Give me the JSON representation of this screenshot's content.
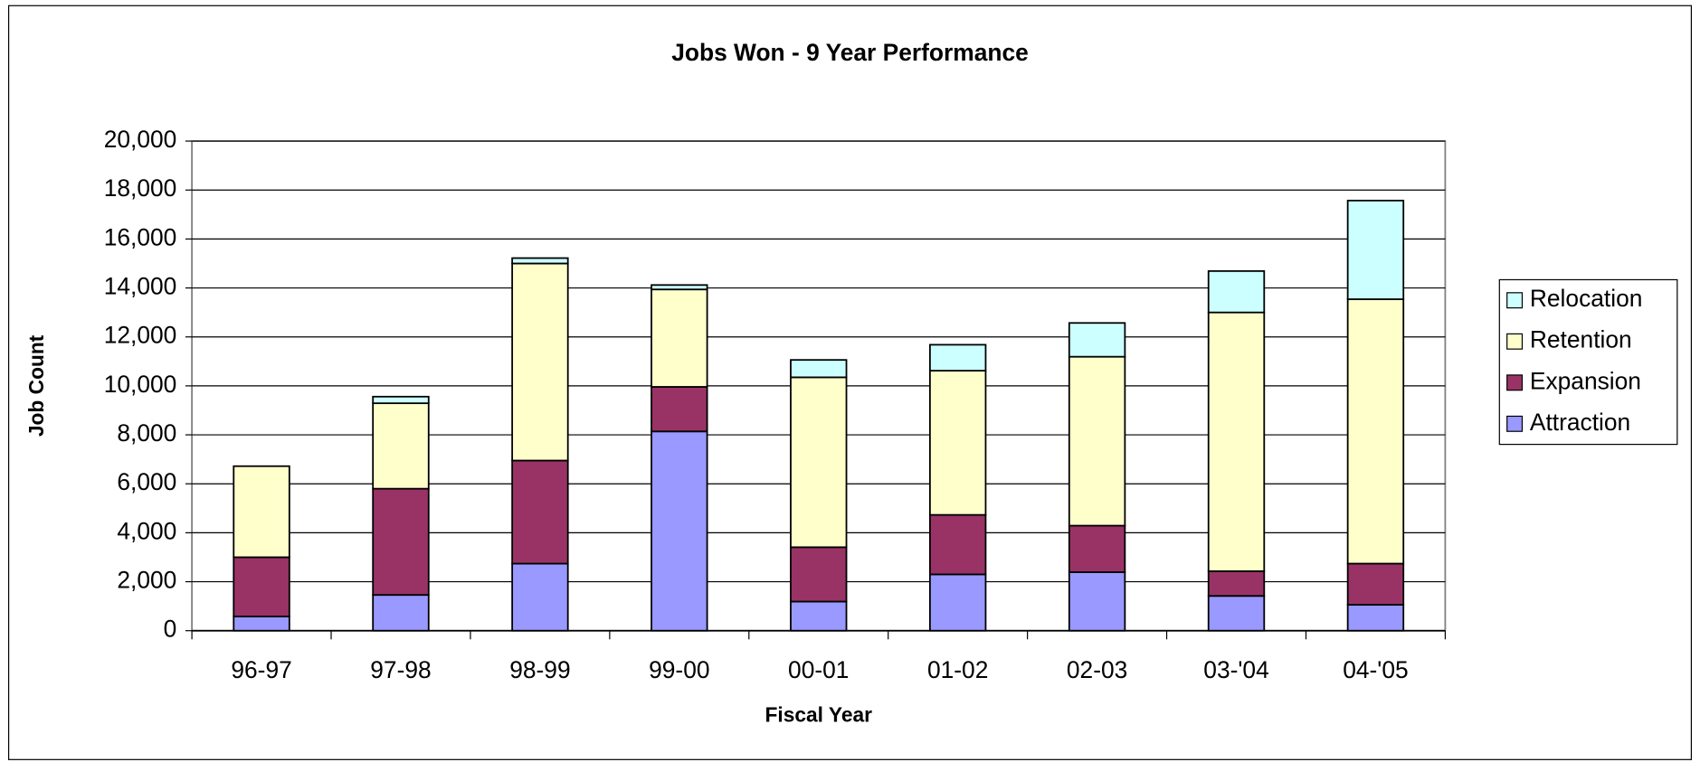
{
  "chart_data": {
    "type": "stacked_bar",
    "title": "Jobs Won - 9 Year Performance",
    "x_label": "Fiscal Year",
    "y_label": "Job Count",
    "categories": [
      "96-97",
      "97-98",
      "98-99",
      "99-00",
      "00-01",
      "01-02",
      "02-03",
      "03-'04",
      "04-'05"
    ],
    "series": [
      {
        "name": "Attraction",
        "color": "#9999ff",
        "values": [
          580,
          1460,
          2740,
          8140,
          1190,
          2300,
          2390,
          1420,
          1060
        ]
      },
      {
        "name": "Expansion",
        "color": "#993366",
        "values": [
          2420,
          4340,
          4210,
          1820,
          2220,
          2430,
          1900,
          1010,
          1680
        ]
      },
      {
        "name": "Retention",
        "color": "#ffffcc",
        "values": [
          3720,
          3490,
          8050,
          3980,
          6940,
          5890,
          6900,
          10570,
          10800
        ]
      },
      {
        "name": "Relocation",
        "color": "#ccffff",
        "values": [
          0,
          270,
          220,
          180,
          710,
          1060,
          1380,
          1690,
          4030
        ]
      }
    ],
    "ylim": [
      0,
      20000
    ],
    "yticks": [
      0,
      {
        "value": 2000,
        "label": "2,000"
      },
      {
        "value": 4000,
        "label": "4,000"
      },
      {
        "value": 6000,
        "label": "6,000"
      },
      {
        "value": 8000,
        "label": "8,000"
      },
      {
        "value": 10000,
        "label": "10,000"
      },
      {
        "value": 12000,
        "label": "12,000"
      },
      {
        "value": 14000,
        "label": "14,000"
      },
      {
        "value": 16000,
        "label": "16,000"
      },
      {
        "value": 18000,
        "label": "18,000"
      },
      {
        "value": 20000,
        "label": "20,000"
      }
    ],
    "grid": true,
    "legend": "right"
  }
}
